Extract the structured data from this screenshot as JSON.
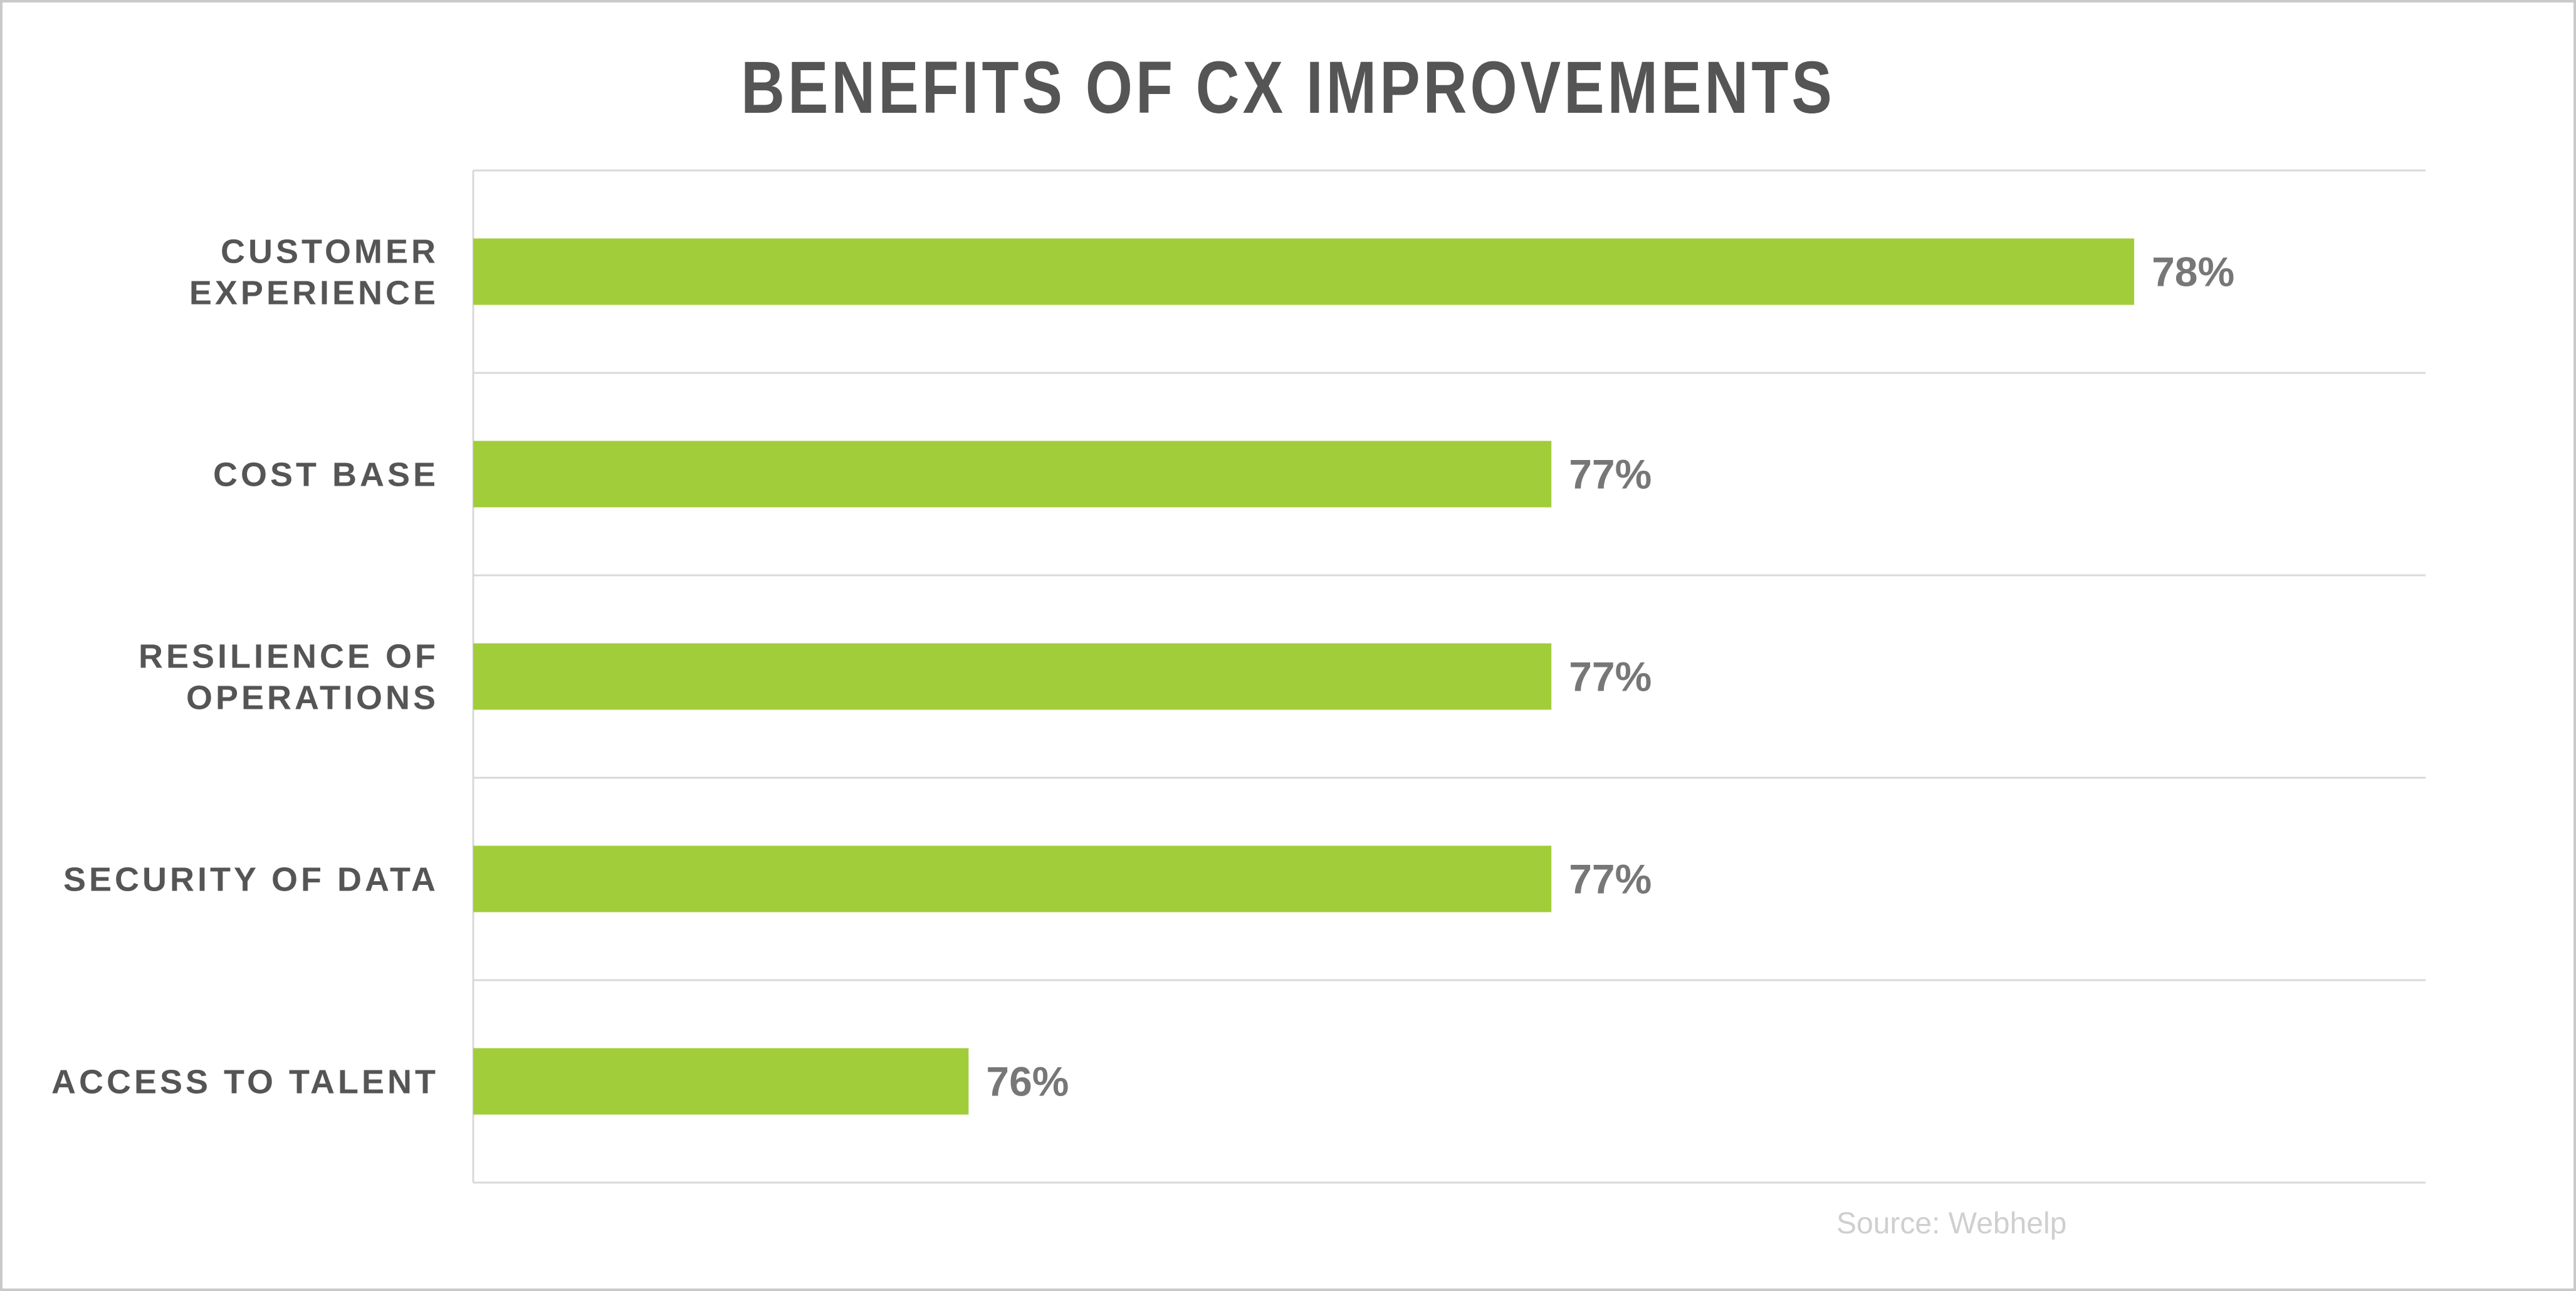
{
  "chart_data": {
    "type": "bar",
    "orientation": "horizontal",
    "title": "BENEFITS OF CX IMPROVEMENTS",
    "categories": [
      [
        "CUSTOMER",
        "EXPERIENCE"
      ],
      [
        "COST BASE"
      ],
      [
        "RESILIENCE OF",
        "OPERATIONS"
      ],
      [
        "SECURITY OF DATA"
      ],
      [
        "ACCESS TO TALENT"
      ]
    ],
    "values": [
      78,
      77,
      77,
      77,
      76
    ],
    "value_labels": [
      "78%",
      "77%",
      "77%",
      "77%",
      "76%"
    ],
    "xlim": [
      75.15,
      78.5
    ],
    "grid": "horizontal separators",
    "bar_color": "#a2cd3a",
    "gridline_color": "#d9d9d9",
    "text_color": "#555555",
    "value_label_color": "#777777"
  },
  "source": "Source: Webhelp"
}
